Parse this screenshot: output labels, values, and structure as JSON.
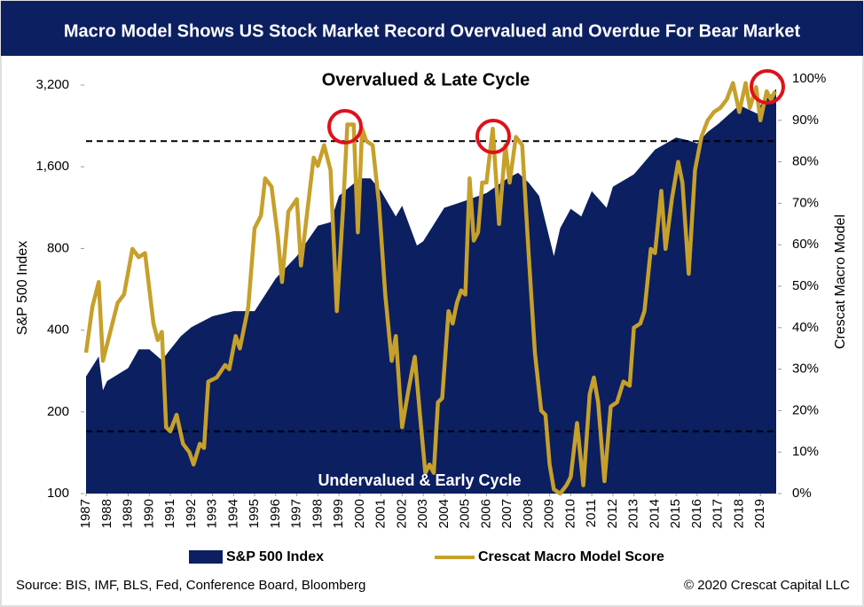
{
  "chart_data": {
    "type": "combo",
    "title": "Macro Model Shows US Stock Market Record Overvalued and Overdue For Bear Market",
    "annotations": [
      "Overvalued & Late Cycle",
      "Undervalued & Early Cycle"
    ],
    "ylabel": "S&P 500 Index",
    "y2label": "Crescat Macro Model",
    "source": "Source: BIS, IMF, BLS, Fed, Conference Board, Bloomberg",
    "credit": "© 2020 Crescat Capital LLC",
    "xlim": [
      1987,
      2019.75
    ],
    "xticks": [
      1987,
      1988,
      1989,
      1990,
      1991,
      1992,
      1993,
      1994,
      1995,
      1996,
      1997,
      1998,
      1999,
      2000,
      2001,
      2002,
      2003,
      2004,
      2005,
      2006,
      2007,
      2008,
      2009,
      2010,
      2011,
      2012,
      2013,
      2014,
      2015,
      2016,
      2017,
      2018,
      2019
    ],
    "ylim": [
      100,
      3200
    ],
    "yscale": "log",
    "yticks": [
      100,
      200,
      400,
      800,
      {
        "value": 1600,
        "label": "1,600"
      },
      {
        "value": 3200,
        "label": "3,200"
      }
    ],
    "y2lim": [
      0,
      100
    ],
    "y2ticks": [
      {
        "value": 0,
        "label": "0%"
      },
      {
        "value": 10,
        "label": "10%"
      },
      {
        "value": 20,
        "label": "20%"
      },
      {
        "value": 30,
        "label": "30%"
      },
      {
        "value": 40,
        "label": "40%"
      },
      {
        "value": 50,
        "label": "50%"
      },
      {
        "value": 60,
        "label": "60%"
      },
      {
        "value": 70,
        "label": "70%"
      },
      {
        "value": 80,
        "label": "80%"
      },
      {
        "value": 90,
        "label": "90%"
      },
      {
        "value": 100,
        "label": "100%"
      }
    ],
    "y2_reference_lines": [
      85,
      15
    ],
    "series": [
      {
        "name": "S&P 500 Index",
        "type": "area",
        "color": "#0b1f61",
        "x": [
          1987,
          1987.6,
          1987.8,
          1988,
          1989,
          1989.5,
          1990,
          1990.6,
          1991,
          1991.5,
          1992,
          1993,
          1994,
          1995,
          1996,
          1997,
          1998,
          1998.6,
          1999,
          2000,
          2000.5,
          2001,
          2001.7,
          2002,
          2002.7,
          2003,
          2003.5,
          2004,
          2005,
          2006,
          2007,
          2007.5,
          2008,
          2008.5,
          2009.2,
          2009.5,
          2010,
          2010.5,
          2011,
          2011.7,
          2012,
          2013,
          2014,
          2015,
          2015.6,
          2016,
          2016.5,
          2017,
          2018,
          2018.9,
          2019,
          2019.5,
          2019.75
        ],
        "values": [
          270,
          320,
          240,
          260,
          290,
          340,
          340,
          310,
          340,
          380,
          410,
          450,
          470,
          470,
          620,
          750,
          970,
          1000,
          1250,
          1450,
          1450,
          1300,
          1050,
          1150,
          820,
          850,
          980,
          1130,
          1200,
          1280,
          1450,
          1520,
          1400,
          1250,
          750,
          950,
          1120,
          1050,
          1300,
          1130,
          1350,
          1500,
          1850,
          2050,
          2000,
          1950,
          2150,
          2300,
          2700,
          2500,
          2700,
          2950,
          3100
        ]
      },
      {
        "name": "Crescat Macro Model Score",
        "type": "line",
        "axis": "y2",
        "color": "#c6a02a",
        "x": [
          1987,
          1987.3,
          1987.6,
          1987.8,
          1988.2,
          1988.5,
          1988.8,
          1989.2,
          1989.5,
          1989.8,
          1990.2,
          1990.4,
          1990.6,
          1990.8,
          1991,
          1991.3,
          1991.6,
          1991.9,
          1992.1,
          1992.4,
          1992.6,
          1992.8,
          1993.2,
          1993.6,
          1993.8,
          1994.1,
          1994.3,
          1994.7,
          1995,
          1995.3,
          1995.5,
          1995.8,
          1996.1,
          1996.3,
          1996.6,
          1997,
          1997.2,
          1997.5,
          1997.8,
          1998,
          1998.3,
          1998.6,
          1998.9,
          1999.2,
          1999.4,
          1999.7,
          1999.9,
          2000.1,
          2000.3,
          2000.6,
          2000.9,
          2001.2,
          2001.5,
          2001.7,
          2002,
          2002.3,
          2002.6,
          2002.9,
          2003.1,
          2003.3,
          2003.5,
          2003.7,
          2003.9,
          2004.2,
          2004.4,
          2004.6,
          2004.8,
          2005,
          2005.2,
          2005.4,
          2005.6,
          2005.8,
          2006,
          2006.3,
          2006.6,
          2006.9,
          2007.1,
          2007.4,
          2007.7,
          2008,
          2008.3,
          2008.6,
          2008.8,
          2009,
          2009.2,
          2009.5,
          2009.8,
          2010,
          2010.3,
          2010.6,
          2010.9,
          2011.1,
          2011.3,
          2011.6,
          2011.9,
          2012.2,
          2012.5,
          2012.8,
          2013,
          2013.3,
          2013.5,
          2013.8,
          2014,
          2014.3,
          2014.5,
          2014.8,
          2015.1,
          2015.3,
          2015.6,
          2015.9,
          2016.2,
          2016.5,
          2016.8,
          2017.1,
          2017.4,
          2017.7,
          2018,
          2018.3,
          2018.5,
          2018.8,
          2019,
          2019.3,
          2019.5,
          2019.7
        ],
        "values": [
          34,
          45,
          51,
          32,
          40,
          46,
          48,
          59,
          57,
          58,
          41,
          37,
          39,
          16,
          15,
          19,
          12,
          10,
          7,
          12,
          11,
          27,
          28,
          31,
          30,
          38,
          35,
          45,
          64,
          67,
          76,
          74,
          62,
          51,
          68,
          71,
          55,
          68,
          81,
          79,
          84,
          78,
          44,
          69,
          89,
          89,
          63,
          88,
          85,
          84,
          70,
          48,
          32,
          38,
          16,
          25,
          33,
          16,
          5,
          7,
          5,
          22,
          23,
          44,
          41,
          46,
          49,
          48,
          76,
          61,
          63,
          75,
          75,
          88,
          65,
          84,
          75,
          86,
          84,
          58,
          34,
          20,
          19,
          7,
          1,
          0,
          2,
          4,
          17,
          2,
          24,
          28,
          22,
          3,
          21,
          22,
          27,
          26,
          40,
          41,
          44,
          59,
          58,
          73,
          59,
          71,
          80,
          75,
          53,
          78,
          86,
          90,
          92,
          93,
          95,
          99,
          92,
          99,
          93,
          98,
          90,
          97,
          95,
          97
        ]
      }
    ]
  }
}
